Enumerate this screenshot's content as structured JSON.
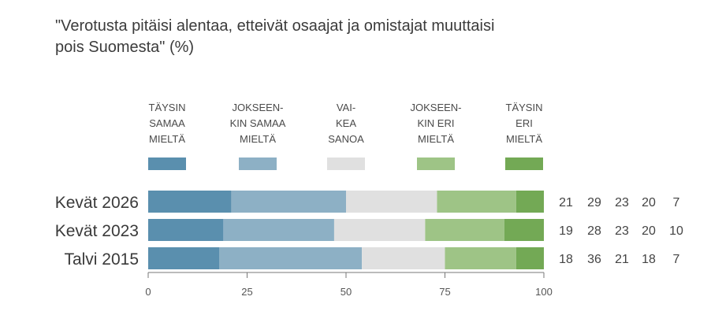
{
  "chart_data": {
    "type": "bar",
    "orientation": "horizontal",
    "stacked": true,
    "title": "\"Verotusta pitäisi alentaa, etteivät osaajat ja omistajat muuttaisi\n pois Suomesta\" (%)",
    "categories": [
      "Kevät 2026",
      "Kevät 2023",
      "Talvi 2015"
    ],
    "series": [
      {
        "name": "TÄYSIN\nSAMAA\nMIELTÄ",
        "color": "#5a8fae",
        "values": [
          21,
          19,
          18
        ]
      },
      {
        "name": "JOKSEEN-\nKIN SAMAA\nMIELTÄ",
        "color": "#8db0c5",
        "values": [
          29,
          28,
          36
        ]
      },
      {
        "name": "VAI-\nKEA\nSANOA",
        "color": "#e0e0e0",
        "values": [
          23,
          23,
          21
        ]
      },
      {
        "name": "JOKSEEN-\nKIN ERI\nMIELTÄ",
        "color": "#9ec486",
        "values": [
          20,
          20,
          18
        ]
      },
      {
        "name": "TÄYSIN\nERI\nMIELTÄ",
        "color": "#73a955",
        "values": [
          7,
          10,
          7
        ]
      }
    ],
    "value_labels": [
      [
        "21",
        "29",
        "23",
        "20",
        "7"
      ],
      [
        "19",
        "28",
        "23",
        "20",
        "10"
      ],
      [
        "18",
        "36",
        "21",
        "18",
        "7"
      ]
    ],
    "xlim": [
      0,
      100
    ],
    "xticks": [
      "0",
      "25",
      "50",
      "75",
      "100"
    ],
    "xlabel": "",
    "ylabel": "",
    "grid": false,
    "legend_position": "top"
  }
}
